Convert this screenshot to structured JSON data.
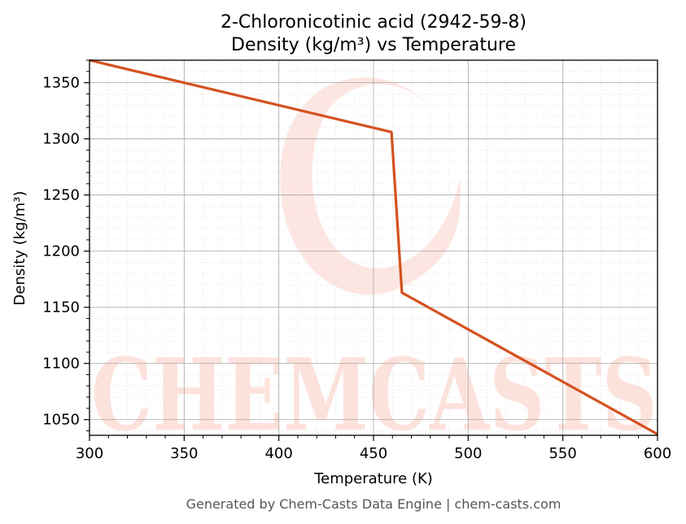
{
  "chart_data": {
    "type": "line",
    "title": "2-Chloronicotinic acid (2942-59-8)",
    "subtitle": "Density (kg/m³) vs Temperature",
    "xlabel": "Temperature (K)",
    "ylabel": "Density (kg/m³)",
    "xlim": [
      300,
      600
    ],
    "ylim": [
      1036,
      1370
    ],
    "xticks": [
      300,
      350,
      400,
      450,
      500,
      550,
      600
    ],
    "yticks": [
      1050,
      1100,
      1150,
      1200,
      1250,
      1300,
      1350
    ],
    "grid": true,
    "series": [
      {
        "color": "#d4511f",
        "x": [
          300,
          459.5,
          465,
          600
        ],
        "y": [
          1370,
          1306,
          1163,
          1037
        ]
      }
    ]
  },
  "watermark": {
    "text": "CHEMCASTS",
    "color": "#fde2dc"
  },
  "footer": "Generated by Chem-Casts Data Engine | chem-casts.com"
}
